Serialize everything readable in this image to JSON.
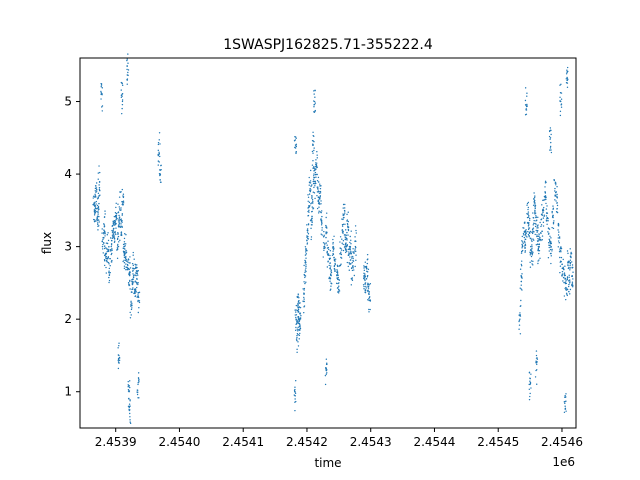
{
  "chart_data": {
    "type": "scatter",
    "title": "1SWASPJ162825.71-355222.4",
    "xlabel": "time",
    "ylabel": "flux",
    "x_offset_label": "1e6",
    "xlim": [
      2453844,
      2454622
    ],
    "ylim": [
      0.5,
      5.6
    ],
    "x_ticks": [
      2453900,
      2454000,
      2454100,
      2454200,
      2454300,
      2454400,
      2454500,
      2454600
    ],
    "x_tick_labels": [
      "2.4539",
      "2.4540",
      "2.4541",
      "2.4542",
      "2.4543",
      "2.4544",
      "2.4545",
      "2.4546"
    ],
    "y_ticks": [
      1,
      2,
      3,
      4,
      5
    ],
    "y_tick_labels": [
      "1",
      "2",
      "3",
      "4",
      "5"
    ],
    "grid": false,
    "legend": "none",
    "marker_color": "#1f77b4",
    "series": [
      {
        "points": [
          [
            2453866,
            3.6
          ],
          [
            2453868,
            3.5
          ],
          [
            2453869,
            3.75
          ],
          [
            2453871,
            3.4
          ],
          [
            2453873,
            3.55
          ],
          [
            2453874,
            3.85
          ],
          [
            2453880,
            3.1
          ],
          [
            2453882,
            3.3
          ],
          [
            2453884,
            2.9
          ],
          [
            2453886,
            2.8
          ],
          [
            2453888,
            2.95
          ],
          [
            2453890,
            2.7
          ],
          [
            2453893,
            3.0
          ],
          [
            2453895,
            3.2
          ],
          [
            2453897,
            3.25
          ],
          [
            2453899,
            3.3
          ],
          [
            2453901,
            3.4
          ],
          [
            2453903,
            3.1
          ],
          [
            2453905,
            3.3
          ],
          [
            2453907,
            3.5
          ],
          [
            2453909,
            3.2
          ],
          [
            2453911,
            3.6
          ],
          [
            2453913,
            3.0
          ],
          [
            2453915,
            2.9
          ],
          [
            2453917,
            2.8
          ],
          [
            2453920,
            2.7
          ],
          [
            2453922,
            2.6
          ],
          [
            2453924,
            2.2
          ],
          [
            2453926,
            2.5
          ],
          [
            2453928,
            2.7
          ],
          [
            2453930,
            2.4
          ],
          [
            2453932,
            2.6
          ],
          [
            2453934,
            2.5
          ],
          [
            2453936,
            2.3
          ],
          [
            2453878,
            5.1
          ],
          [
            2453910,
            5.1
          ],
          [
            2453919,
            5.4
          ],
          [
            2453905,
            1.5
          ],
          [
            2453922,
            0.7
          ],
          [
            2453921,
            1.0
          ],
          [
            2453935,
            1.1
          ],
          [
            2453968,
            4.3
          ],
          [
            2453970,
            4.0
          ],
          [
            2454183,
            2.0
          ],
          [
            2454185,
            1.8
          ],
          [
            2454186,
            2.2
          ],
          [
            2454187,
            2.1
          ],
          [
            2454188,
            1.9
          ],
          [
            2454189,
            2.0
          ],
          [
            2454195,
            2.3
          ],
          [
            2454197,
            2.6
          ],
          [
            2454199,
            2.9
          ],
          [
            2454201,
            3.2
          ],
          [
            2454203,
            3.5
          ],
          [
            2454205,
            3.8
          ],
          [
            2454207,
            3.3
          ],
          [
            2454209,
            3.6
          ],
          [
            2454211,
            4.0
          ],
          [
            2454213,
            3.9
          ],
          [
            2454215,
            4.1
          ],
          [
            2454217,
            3.8
          ],
          [
            2454219,
            3.6
          ],
          [
            2454221,
            3.7
          ],
          [
            2454223,
            3.3
          ],
          [
            2454227,
            3.0
          ],
          [
            2454230,
            3.2
          ],
          [
            2454233,
            2.9
          ],
          [
            2454236,
            2.7
          ],
          [
            2454238,
            2.6
          ],
          [
            2454241,
            3.0
          ],
          [
            2454244,
            2.8
          ],
          [
            2454247,
            2.6
          ],
          [
            2454250,
            2.5
          ],
          [
            2454253,
            2.9
          ],
          [
            2454256,
            3.2
          ],
          [
            2454258,
            3.4
          ],
          [
            2454260,
            3.1
          ],
          [
            2454262,
            3.0
          ],
          [
            2454264,
            3.3
          ],
          [
            2454266,
            2.9
          ],
          [
            2454268,
            3.0
          ],
          [
            2454270,
            2.7
          ],
          [
            2454273,
            2.8
          ],
          [
            2454276,
            3.0
          ],
          [
            2454290,
            2.6
          ],
          [
            2454292,
            2.5
          ],
          [
            2454294,
            2.7
          ],
          [
            2454296,
            2.4
          ],
          [
            2454298,
            2.3
          ],
          [
            2454181,
            1.0
          ],
          [
            2454182,
            4.4
          ],
          [
            2454210,
            4.4
          ],
          [
            2454212,
            5.0
          ],
          [
            2454230,
            1.3
          ],
          [
            2454534,
            2.0
          ],
          [
            2454536,
            2.6
          ],
          [
            2454538,
            3.0
          ],
          [
            2454541,
            3.2
          ],
          [
            2454543,
            3.1
          ],
          [
            2454546,
            3.4
          ],
          [
            2454548,
            3.3
          ],
          [
            2454551,
            3.0
          ],
          [
            2454553,
            2.9
          ],
          [
            2454555,
            3.3
          ],
          [
            2454557,
            3.6
          ],
          [
            2454559,
            3.4
          ],
          [
            2454561,
            3.2
          ],
          [
            2454563,
            3.0
          ],
          [
            2454565,
            3.1
          ],
          [
            2454568,
            3.3
          ],
          [
            2454571,
            3.5
          ],
          [
            2454574,
            3.7
          ],
          [
            2454577,
            3.4
          ],
          [
            2454580,
            3.1
          ],
          [
            2454583,
            3.0
          ],
          [
            2454586,
            3.4
          ],
          [
            2454589,
            3.8
          ],
          [
            2454592,
            3.6
          ],
          [
            2454595,
            3.2
          ],
          [
            2454598,
            2.8
          ],
          [
            2454601,
            2.7
          ],
          [
            2454604,
            2.6
          ],
          [
            2454607,
            2.4
          ],
          [
            2454610,
            2.7
          ],
          [
            2454612,
            2.5
          ],
          [
            2454614,
            2.9
          ],
          [
            2454616,
            2.6
          ],
          [
            2454544,
            4.9
          ],
          [
            2454582,
            4.5
          ],
          [
            2454598,
            5.0
          ],
          [
            2454608,
            5.4
          ],
          [
            2454560,
            1.4
          ],
          [
            2454605,
            0.8
          ],
          [
            2454550,
            1.1
          ]
        ]
      }
    ]
  }
}
